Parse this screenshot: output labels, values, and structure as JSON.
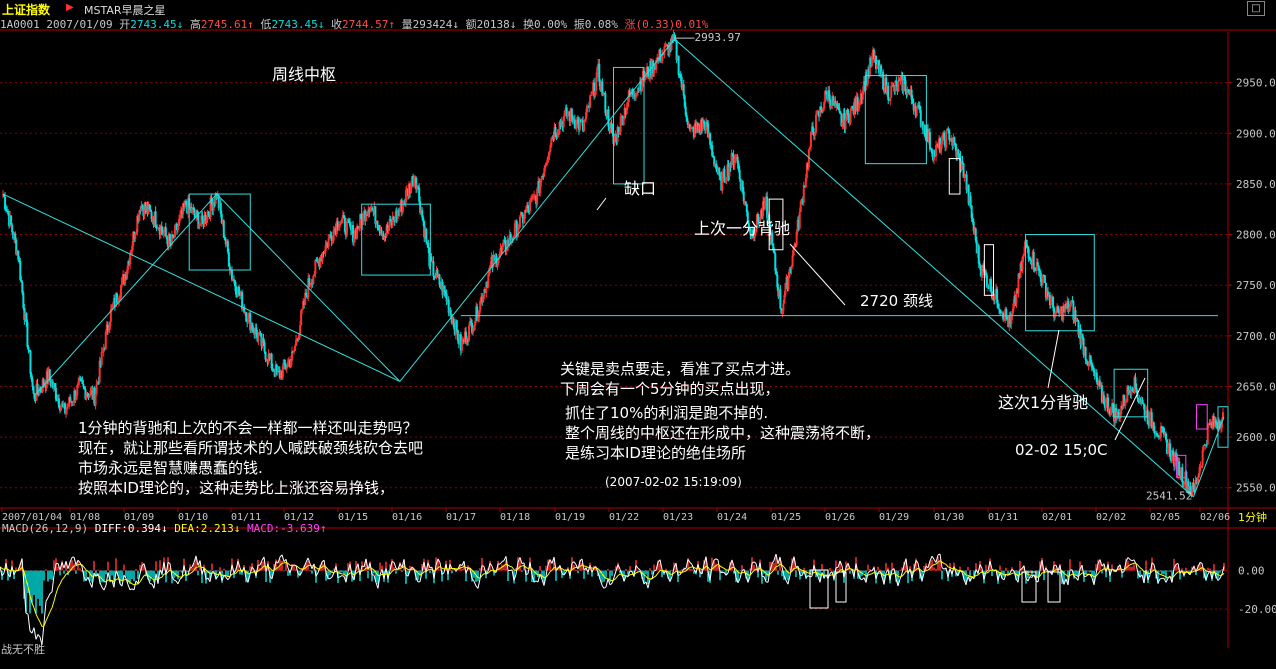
{
  "titlebar": {
    "title": "上证指数",
    "subtitle": "MSTAR早晨之星",
    "close_label": "□"
  },
  "quote": {
    "code_date": "1A0001 2007/01/09",
    "open_label": "开",
    "open": "2743.45↓",
    "high_label": "高",
    "high": "2745.61↑",
    "low_label": "低",
    "low": "2743.45↓",
    "close_label": "收",
    "close": "2744.57↑",
    "volume": "量293424↓",
    "amount": "额20138↓",
    "turnover": "换0.00%",
    "amplitude": "振0.08%",
    "change": "涨(0.33)0.01%"
  },
  "annotations": {
    "pivot_week": "周线中枢",
    "gap": "缺口",
    "last_divergence": "上次一分背驰",
    "neckline": "2720 颈线",
    "this_divergence": "这次1分背驰",
    "time_label": "02-02 15;0C",
    "left_block": [
      "1分钟的背驰和上次的不会一样都一样还叫走势吗？",
      "现在，就让那些看所谓技术的人喊跌破颈线砍仓去吧",
      "市场永远是智慧赚愚蠢的钱.",
      "按照本ID理论的，这种走势比上涨还容易挣钱，"
    ],
    "mid_block_a": [
      "关键是卖点要走，看准了买点才进。",
      "下周会有一个5分钟的买点出现，"
    ],
    "mid_block_b": [
      "抓住了10%的利润是跑不掉的.",
      "整个周线的中枢还在形成中，这种震荡将不断，",
      "是练习本ID理论的绝佳场所"
    ],
    "timestamp": "(2007-02-02 15:19:09)",
    "peak_label": "2993.97",
    "low_label": "2541.52"
  },
  "macd": {
    "name": "MACD(26,12,9)",
    "diff": "DIFF:0.394↓",
    "dea": "DEA:2.213↓",
    "macd": "MACD:-3.639↑"
  },
  "footer": "战无不胜",
  "timeframe": "1分钟",
  "colors": {
    "up": "#ff3030",
    "down": "#00e0e0",
    "grid": "#8b0000",
    "axis": "#b00000",
    "diff": "#ffffff",
    "dea": "#ffff00"
  },
  "chart_data": [
    {
      "type": "candlestick",
      "ylim": [
        2530,
        3000
      ],
      "yticks": [
        2550,
        2600,
        2650,
        2700,
        2750,
        2800,
        2850,
        2900,
        2950
      ],
      "x_labels": [
        "2007/01/04",
        "01/08",
        "01/09",
        "01/10",
        "01/11",
        "01/12",
        "01/15",
        "01/16",
        "01/17",
        "01/18",
        "01/19",
        "01/22",
        "01/23",
        "01/24",
        "01/25",
        "01/26",
        "01/29",
        "01/30",
        "01/31",
        "02/01",
        "02/02",
        "02/05",
        "02/06"
      ],
      "price_path": [
        [
          0,
          2840
        ],
        [
          1,
          2780
        ],
        [
          2,
          2640
        ],
        [
          3,
          2660
        ],
        [
          4,
          2625
        ],
        [
          5,
          2650
        ],
        [
          6,
          2640
        ],
        [
          7,
          2720
        ],
        [
          8,
          2760
        ],
        [
          9,
          2830
        ],
        [
          10,
          2815
        ],
        [
          11,
          2790
        ],
        [
          12,
          2830
        ],
        [
          13,
          2810
        ],
        [
          14,
          2840
        ],
        [
          15,
          2760
        ],
        [
          16,
          2720
        ],
        [
          17,
          2690
        ],
        [
          18,
          2660
        ],
        [
          19,
          2680
        ],
        [
          20,
          2750
        ],
        [
          21,
          2785
        ],
        [
          22,
          2815
        ],
        [
          23,
          2800
        ],
        [
          24,
          2830
        ],
        [
          25,
          2800
        ],
        [
          26,
          2825
        ],
        [
          27,
          2860
        ],
        [
          28,
          2770
        ],
        [
          29,
          2740
        ],
        [
          30,
          2690
        ],
        [
          31,
          2720
        ],
        [
          32,
          2770
        ],
        [
          33,
          2790
        ],
        [
          34,
          2815
        ],
        [
          35,
          2840
        ],
        [
          36,
          2900
        ],
        [
          37,
          2920
        ],
        [
          38,
          2905
        ],
        [
          39,
          2960
        ],
        [
          40,
          2890
        ],
        [
          41,
          2935
        ],
        [
          42,
          2955
        ],
        [
          43,
          2975
        ],
        [
          44,
          2990
        ],
        [
          45,
          2900
        ],
        [
          46,
          2910
        ],
        [
          47,
          2850
        ],
        [
          48,
          2880
        ],
        [
          49,
          2800
        ],
        [
          50,
          2830
        ],
        [
          51,
          2725
        ],
        [
          52,
          2800
        ],
        [
          53,
          2900
        ],
        [
          54,
          2940
        ],
        [
          55,
          2910
        ],
        [
          56,
          2930
        ],
        [
          57,
          2975
        ],
        [
          58,
          2940
        ],
        [
          59,
          2950
        ],
        [
          60,
          2920
        ],
        [
          61,
          2880
        ],
        [
          62,
          2900
        ],
        [
          63,
          2860
        ],
        [
          64,
          2770
        ],
        [
          65,
          2740
        ],
        [
          66,
          2710
        ],
        [
          67,
          2790
        ],
        [
          68,
          2760
        ],
        [
          69,
          2720
        ],
        [
          70,
          2730
        ],
        [
          71,
          2680
        ],
        [
          72,
          2640
        ],
        [
          73,
          2620
        ],
        [
          74,
          2655
        ],
        [
          75,
          2620
        ],
        [
          76,
          2600
        ],
        [
          77,
          2570
        ],
        [
          78,
          2545
        ],
        [
          79,
          2610
        ],
        [
          80,
          2620
        ]
      ],
      "peak": 2993.97,
      "low": 2541.52,
      "neckline": 2720
    },
    {
      "type": "bar",
      "name": "MACD(26,12,9)",
      "ylim": [
        -35,
        20
      ],
      "yticks": [
        0.0,
        -20.0
      ],
      "ytick_labels": [
        "0.00",
        "-20.00"
      ],
      "series": [
        {
          "name": "DIFF",
          "value": 0.394
        },
        {
          "name": "DEA",
          "value": 2.213
        },
        {
          "name": "MACD",
          "value": -3.639
        }
      ]
    }
  ]
}
